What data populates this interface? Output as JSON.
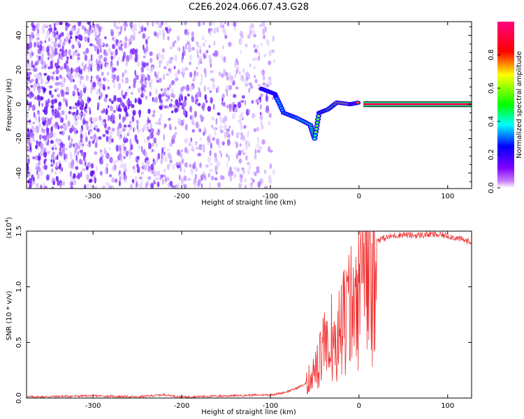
{
  "title": "C2E6.2024.066.07.43.G28",
  "colors": {
    "snr_line": "#f03030",
    "spectrogram_background": "#ffffff"
  },
  "chart_data": [
    {
      "type": "heatmap",
      "title": "C2E6.2024.066.07.43.G28",
      "xlabel": "Height of straight line (km)",
      "ylabel": "Frequency (Hz)",
      "xlim": [
        -375,
        127
      ],
      "ylim": [
        -49,
        48
      ],
      "xticks": [
        -300,
        -200,
        -100,
        0,
        100
      ],
      "yticks": [
        -40,
        -20,
        0,
        20,
        40
      ],
      "colorbar": {
        "label": "Normalized spectral amplitude",
        "range": [
          0.0,
          1.0
        ],
        "ticks": [
          "0.0",
          "0.2",
          "0.4",
          "0.6",
          "0.8"
        ],
        "colormap": [
          "#ffffff",
          "#8000ff",
          "#0000ff",
          "#00ffff",
          "#00ff00",
          "#ffff00",
          "#ff0000",
          "#ff0080"
        ]
      },
      "signal_track": {
        "description_points": [
          {
            "x": -110,
            "y": 9
          },
          {
            "x": -95,
            "y": 6
          },
          {
            "x": -85,
            "y": -5
          },
          {
            "x": -70,
            "y": -8
          },
          {
            "x": -55,
            "y": -12
          },
          {
            "x": -50,
            "y": -20
          },
          {
            "x": -45,
            "y": -5
          },
          {
            "x": -35,
            "y": -3
          },
          {
            "x": -25,
            "y": 1
          },
          {
            "x": -10,
            "y": 0
          },
          {
            "x": 0,
            "y": 1
          },
          {
            "x": 127,
            "y": 0
          }
        ],
        "carrier_start_x": 5,
        "carrier_frequency": 0
      }
    },
    {
      "type": "line",
      "xlabel": "Height of straight line (km)",
      "ylabel": "SNR (10 * v/v)",
      "y_scale_label": "(x10",
      "y_scale_exponent": "4",
      "y_scale_suffix": ")",
      "xlim": [
        -375,
        127
      ],
      "ylim": [
        0,
        1.5
      ],
      "xticks": [
        -300,
        -200,
        -100,
        0,
        100
      ],
      "yticks": [
        "0.0",
        "0.5",
        "1.0",
        "1.5"
      ],
      "series": [
        {
          "x": [
            -375,
            -300,
            -250,
            -220,
            -200,
            -150,
            -100,
            -90,
            -80,
            -70,
            -60,
            -50,
            -45,
            -40,
            -35,
            -30,
            -25,
            -20,
            -15,
            -10,
            -5,
            0,
            5,
            10,
            15,
            20,
            30,
            40,
            50,
            60,
            80,
            100,
            127
          ],
          "y": [
            0.01,
            0.02,
            0.01,
            0.03,
            0.01,
            0.02,
            0.03,
            0.04,
            0.06,
            0.09,
            0.13,
            0.25,
            0.35,
            0.55,
            0.45,
            0.7,
            0.6,
            0.95,
            0.8,
            1.05,
            1.1,
            1.25,
            1.3,
            1.35,
            1.4,
            1.42,
            1.44,
            1.46,
            1.47,
            1.46,
            1.47,
            1.46,
            1.4
          ]
        }
      ]
    }
  ]
}
